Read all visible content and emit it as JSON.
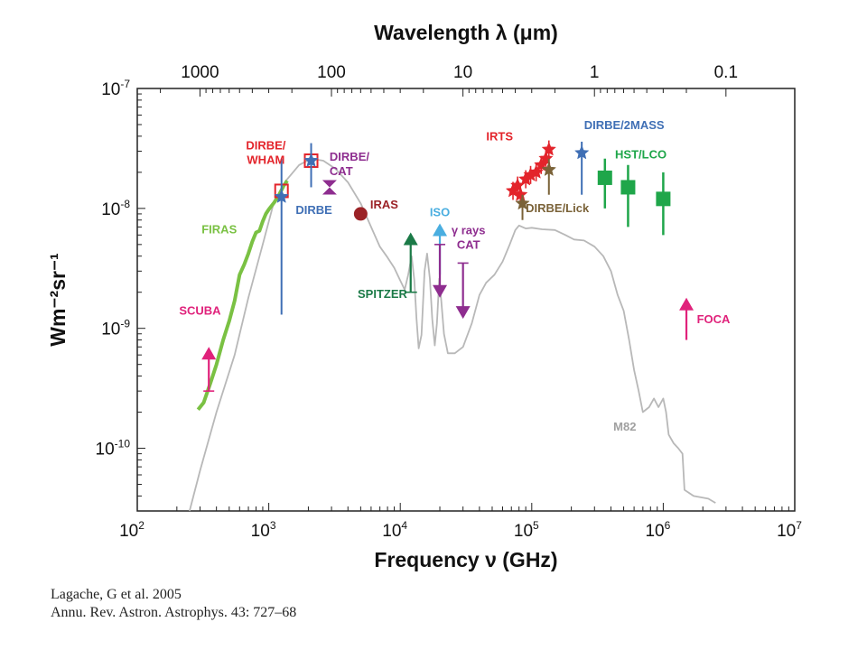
{
  "chart_data": {
    "type": "scatter",
    "title": "",
    "top_axis_label": "Wavelength λ (μm)",
    "top_ticks": [
      {
        "value": 1000,
        "label": "1000"
      },
      {
        "value": 100,
        "label": "100"
      },
      {
        "value": 10,
        "label": "10"
      },
      {
        "value": 1,
        "label": "1"
      },
      {
        "value": 0.1,
        "label": "0.1"
      }
    ],
    "xlabel": "Frequency ν (GHz)",
    "ylabel": "Wm⁻²sr⁻¹",
    "xscale": "log",
    "yscale": "log",
    "xlim": [
      100,
      10000000
    ],
    "ylim": [
      3e-11,
      1e-07
    ],
    "x_ticks": [
      {
        "value": 100,
        "base": "10",
        "exp": "2"
      },
      {
        "value": 1000,
        "base": "10",
        "exp": "3"
      },
      {
        "value": 10000,
        "base": "10",
        "exp": "4"
      },
      {
        "value": 100000,
        "base": "10",
        "exp": "5"
      },
      {
        "value": 1000000,
        "base": "10",
        "exp": "6"
      },
      {
        "value": 10000000,
        "base": "10",
        "exp": "7"
      }
    ],
    "y_ticks": [
      {
        "value": 1e-07,
        "base": "10",
        "exp": "-7"
      },
      {
        "value": 1e-08,
        "base": "10",
        "exp": "-8"
      },
      {
        "value": 1e-09,
        "base": "10",
        "exp": "-9"
      },
      {
        "value": 1e-10,
        "base": "10",
        "exp": "-10"
      }
    ],
    "series": [
      {
        "name": "M82",
        "kind": "curve",
        "color": "#b8b8b8",
        "points": [
          [
            250,
            3e-11
          ],
          [
            300,
            6.5e-11
          ],
          [
            400,
            2e-10
          ],
          [
            550,
            6e-10
          ],
          [
            700,
            1.8e-09
          ],
          [
            900,
            5e-09
          ],
          [
            1100,
            1.15e-08
          ],
          [
            1350,
            1.7e-08
          ],
          [
            1700,
            2.3e-08
          ],
          [
            2100,
            2.6e-08
          ],
          [
            2600,
            2.5e-08
          ],
          [
            3200,
            2.15e-08
          ],
          [
            4000,
            1.65e-08
          ],
          [
            5000,
            1.1e-08
          ],
          [
            6000,
            7e-09
          ],
          [
            7000,
            4.8e-09
          ],
          [
            8000,
            3.9e-09
          ],
          [
            9000,
            3.2e-09
          ],
          [
            10000,
            2.5e-09
          ],
          [
            10800,
            2.1e-09
          ],
          [
            11500,
            2.8e-09
          ],
          [
            12200,
            4e-09
          ],
          [
            12800,
            2.5e-09
          ],
          [
            13300,
            1.2e-09
          ],
          [
            13800,
            6.8e-10
          ],
          [
            14500,
            8.8e-10
          ],
          [
            15300,
            3e-09
          ],
          [
            16000,
            4.2e-09
          ],
          [
            16800,
            2.6e-09
          ],
          [
            17500,
            1.2e-09
          ],
          [
            18300,
            7.2e-10
          ],
          [
            19000,
            1.1e-09
          ],
          [
            19800,
            2.6e-09
          ],
          [
            20500,
            1.7e-09
          ],
          [
            21500,
            9e-10
          ],
          [
            23000,
            6.2e-10
          ],
          [
            26000,
            6.2e-10
          ],
          [
            30000,
            7e-10
          ],
          [
            35000,
            1.1e-09
          ],
          [
            40000,
            1.9e-09
          ],
          [
            45000,
            2.4e-09
          ],
          [
            52000,
            2.8e-09
          ],
          [
            60000,
            3.6e-09
          ],
          [
            68000,
            5e-09
          ],
          [
            75000,
            6.6e-09
          ],
          [
            80000,
            7.2e-09
          ],
          [
            90000,
            6.8e-09
          ],
          [
            100000,
            6.9e-09
          ],
          [
            120000,
            6.7e-09
          ],
          [
            150000,
            6.6e-09
          ],
          [
            180000,
            6e-09
          ],
          [
            210000,
            5.5e-09
          ],
          [
            250000,
            5.4e-09
          ],
          [
            300000,
            4.8e-09
          ],
          [
            350000,
            4e-09
          ],
          [
            400000,
            3e-09
          ],
          [
            450000,
            1.9e-09
          ],
          [
            500000,
            1.4e-09
          ],
          [
            550000,
            8e-10
          ],
          [
            600000,
            4.5e-10
          ],
          [
            650000,
            3e-10
          ],
          [
            700000,
            2e-10
          ],
          [
            780000,
            2.2e-10
          ],
          [
            850000,
            2.6e-10
          ],
          [
            920000,
            2.2e-10
          ],
          [
            1000000,
            2.6e-10
          ],
          [
            1050000,
            2e-10
          ],
          [
            1100000,
            1.3e-10
          ],
          [
            1200000,
            1.1e-10
          ],
          [
            1300000,
            1e-10
          ],
          [
            1400000,
            9e-11
          ],
          [
            1450000,
            4.5e-11
          ],
          [
            1700000,
            4e-11
          ],
          [
            2200000,
            3.8e-11
          ],
          [
            2500000,
            3.5e-11
          ]
        ]
      },
      {
        "name": "FIRAS",
        "kind": "curve",
        "color": "#7ac143",
        "points": [
          [
            290,
            2.1e-10
          ],
          [
            320,
            2.4e-10
          ],
          [
            360,
            3.5e-10
          ],
          [
            400,
            5e-10
          ],
          [
            450,
            8e-10
          ],
          [
            500,
            1.15e-09
          ],
          [
            550,
            1.7e-09
          ],
          [
            600,
            2.8e-09
          ],
          [
            650,
            3.4e-09
          ],
          [
            700,
            4.2e-09
          ],
          [
            750,
            5.3e-09
          ],
          [
            800,
            6.3e-09
          ],
          [
            850,
            6.5e-09
          ],
          [
            900,
            7.8e-09
          ],
          [
            950,
            9e-09
          ],
          [
            1000,
            9.8e-09
          ],
          [
            1100,
            1.12e-08
          ],
          [
            1200,
            1.3e-08
          ],
          [
            1300,
            1.55e-08
          ],
          [
            1380,
            1.7e-08
          ]
        ]
      },
      {
        "name": "SCUBA",
        "kind": "arrow_up",
        "color": "#e0227b",
        "x": 350,
        "y": 7e-10,
        "y_low": 3e-10
      },
      {
        "name": "DIRBE/WHAM",
        "kind": "open_square",
        "color": "#e3242b",
        "points": [
          [
            1250,
            1.4e-08
          ],
          [
            2100,
            2.5e-08
          ]
        ]
      },
      {
        "name": "DIRBE",
        "kind": "star_errorbar",
        "color": "#3f6fb5",
        "points": [
          [
            1250,
            1.25e-08,
            1.3e-09,
            2.6e-08
          ],
          [
            2100,
            2.5e-08,
            1.5e-08,
            3.5e-08
          ]
        ]
      },
      {
        "name": "DIRBE/CAT",
        "kind": "bowtie",
        "color": "#8e2d8f",
        "points": [
          [
            2900,
            1.5e-08
          ]
        ]
      },
      {
        "name": "IRAS",
        "kind": "dot",
        "color": "#9b2226",
        "points": [
          [
            5000,
            9e-09
          ]
        ]
      },
      {
        "name": "SPITZER",
        "kind": "arrow_up",
        "color": "#1b7a47",
        "x": 12000,
        "y": 6.3e-09,
        "y_low": 2e-09
      },
      {
        "name": "ISO",
        "kind": "arrow_up",
        "color": "#4aaee0",
        "x": 20000,
        "y": 7.5e-09,
        "y_low": 2.8e-09
      },
      {
        "name": "ISO upper limit",
        "kind": "arrow_down",
        "color": "#8e2d8f",
        "x": 20000,
        "y": 5e-09,
        "y_low": 1.8e-09
      },
      {
        "name": "γ rays CAT",
        "kind": "arrow_down",
        "color": "#8e2d8f",
        "x": 30000,
        "y": 3.5e-09,
        "y_low": 1.2e-09
      },
      {
        "name": "IRTS",
        "kind": "star",
        "color": "#e3242b",
        "points": [
          [
            72000,
            1.4e-08
          ],
          [
            78000,
            1.55e-08
          ],
          [
            82000,
            1.3e-08
          ],
          [
            90000,
            1.75e-08
          ],
          [
            98000,
            1.9e-08
          ],
          [
            108000,
            2e-08
          ],
          [
            118000,
            2.3e-08
          ],
          [
            128000,
            2.6e-08
          ],
          [
            135000,
            3.1e-08
          ]
        ]
      },
      {
        "name": "DIRBE/Lick",
        "kind": "star_errorbar",
        "color": "#7a6238",
        "points": [
          [
            85000,
            1.1e-08,
            8e-09,
            1.3e-08
          ],
          [
            135000,
            2.1e-08,
            1.3e-08,
            2.6e-08
          ]
        ]
      },
      {
        "name": "DIRBE/2MASS",
        "kind": "star_errorbar",
        "color": "#3f6fb5",
        "points": [
          [
            240000,
            2.9e-08,
            1.3e-08,
            3.6e-08
          ]
        ]
      },
      {
        "name": "HST/LCO",
        "kind": "square_errorbar",
        "color": "#1fa64a",
        "points": [
          [
            360000,
            1.8e-08,
            1e-08,
            2.6e-08
          ],
          [
            540000,
            1.5e-08,
            7e-09,
            2.3e-08
          ],
          [
            1000000,
            1.2e-08,
            6e-09,
            2e-08
          ]
        ]
      },
      {
        "name": "FOCA",
        "kind": "arrow_up",
        "color": "#e0227b",
        "x": 1500000,
        "y": 1.8e-09,
        "y_low": 8e-10
      }
    ],
    "annotations": [
      {
        "lines": [
          "DIRBE/",
          "WHAM"
        ],
        "x": 950,
        "y": 3.1e-08,
        "anchor": "middle",
        "color": "#e3242b"
      },
      {
        "lines": [
          "DIRBE/",
          "CAT"
        ],
        "x": 2900,
        "y": 2.5e-08,
        "anchor": "start",
        "color": "#8e2d8f"
      },
      {
        "lines": [
          "DIRBE"
        ],
        "x": 1600,
        "y": 9e-09,
        "anchor": "start",
        "color": "#3f6fb5"
      },
      {
        "lines": [
          "IRAS"
        ],
        "x": 5900,
        "y": 1e-08,
        "anchor": "start",
        "color": "#9b2226"
      },
      {
        "lines": [
          "FIRAS"
        ],
        "x": 420,
        "y": 6.2e-09,
        "anchor": "middle",
        "color": "#7ac143"
      },
      {
        "lines": [
          "SCUBA"
        ],
        "x": 300,
        "y": 1.3e-09,
        "anchor": "middle",
        "color": "#e0227b"
      },
      {
        "lines": [
          "SPITZER"
        ],
        "x": 11300,
        "y": 1.8e-09,
        "anchor": "end",
        "color": "#1b7a47"
      },
      {
        "lines": [
          "ISO"
        ],
        "x": 20000,
        "y": 8.6e-09,
        "anchor": "middle",
        "color": "#4aaee0"
      },
      {
        "lines": [
          "γ rays",
          "CAT"
        ],
        "x": 33000,
        "y": 6.1e-09,
        "anchor": "middle",
        "color": "#8e2d8f"
      },
      {
        "lines": [
          "IRTS"
        ],
        "x": 72000,
        "y": 3.7e-08,
        "anchor": "end",
        "color": "#e3242b"
      },
      {
        "lines": [
          "DIRBE/Lick"
        ],
        "x": 90000,
        "y": 9.3e-09,
        "anchor": "start",
        "color": "#7a6238"
      },
      {
        "lines": [
          "DIRBE/2MASS"
        ],
        "x": 250000,
        "y": 4.6e-08,
        "anchor": "start",
        "color": "#3f6fb5"
      },
      {
        "lines": [
          "HST/LCO"
        ],
        "x": 430000,
        "y": 2.6e-08,
        "anchor": "start",
        "color": "#1fa64a"
      },
      {
        "lines": [
          "FOCA"
        ],
        "x": 1800000,
        "y": 1.1e-09,
        "anchor": "start",
        "color": "#e0227b"
      },
      {
        "lines": [
          "M82"
        ],
        "x": 510000,
        "y": 1.4e-10,
        "anchor": "middle",
        "color": "#a0a0a0"
      }
    ],
    "grid": false,
    "legend": "none"
  },
  "citation": {
    "line1": "Lagache, G et al. 2005",
    "line2": "Annu. Rev. Astron. Astrophys. 43: 727–68"
  }
}
